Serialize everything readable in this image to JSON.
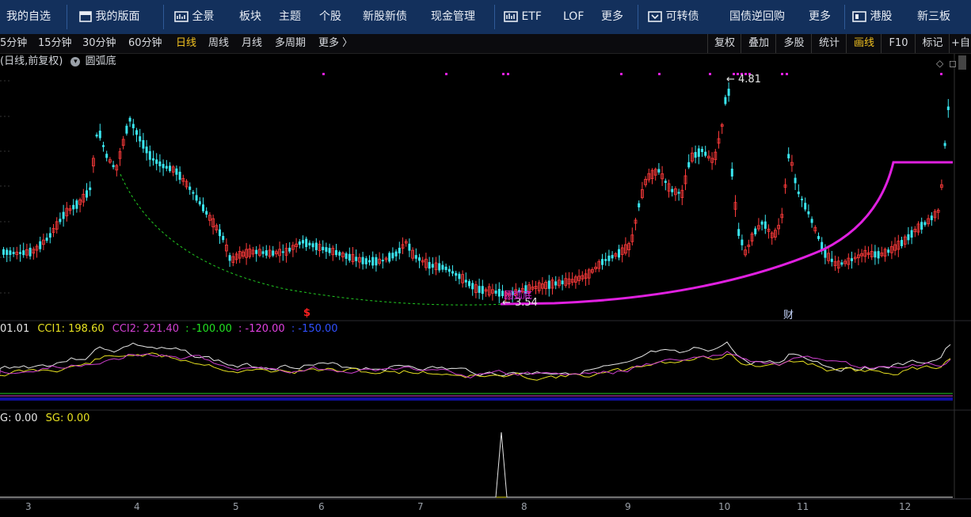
{
  "topbar": {
    "items": [
      {
        "label": "我的自选",
        "icon": ""
      },
      {
        "label": "我的版面",
        "icon": "layout-icon"
      },
      {
        "label": "全景",
        "icon": "panorama-icon"
      },
      {
        "label": "板块",
        "icon": ""
      },
      {
        "label": "主题",
        "icon": ""
      },
      {
        "label": "个股",
        "icon": ""
      },
      {
        "label": "新股新债",
        "icon": ""
      },
      {
        "label": "现金管理",
        "icon": ""
      },
      {
        "label": "ETF",
        "icon": "etf-chart-icon"
      },
      {
        "label": "LOF",
        "icon": ""
      },
      {
        "label": "更多",
        "icon": ""
      },
      {
        "label": "可转债",
        "icon": "bond-icon"
      },
      {
        "label": "国债逆回购",
        "icon": ""
      },
      {
        "label": "更多",
        "icon": ""
      },
      {
        "label": "港股",
        "icon": "hk-icon"
      },
      {
        "label": "新三板",
        "icon": ""
      }
    ]
  },
  "periods": {
    "items": [
      "5分钟",
      "15分钟",
      "30分钟",
      "60分钟",
      "日线",
      "周线",
      "月线",
      "多周期",
      "更多 〉"
    ],
    "active": "日线"
  },
  "toolbar_right": {
    "items": [
      "复权",
      "叠加",
      "多股",
      "统计",
      "画线",
      "F10",
      "标记",
      "+自"
    ],
    "active": "画线"
  },
  "info": {
    "mode": "(日线,前复权)",
    "indicator": "圆弧底"
  },
  "price_labels": {
    "high": "4.81",
    "low": "3.54",
    "high_arrow": "←",
    "low_arrow": "←"
  },
  "markers": {
    "dividend": "$",
    "finance": "财",
    "low_tag": "圆弧底"
  },
  "cci_panel": {
    "prefix": "01.01",
    "cci1_label": "CCI1: 198.60",
    "cci2_label": "CCI2: 221.40",
    "l1": ": -100.00",
    "l2": ": -120.00",
    "l3": ": -150.00"
  },
  "sg_panel": {
    "g_label": "G: 0.00",
    "sg_label": "SG: 0.00"
  },
  "x_axis": {
    "labels": [
      "3",
      "4",
      "5",
      "6",
      "7",
      "8",
      "9",
      "10",
      "11",
      "12"
    ]
  },
  "colors": {
    "up": "#ff3b3b",
    "down": "#3ae6f0",
    "arc": "#e020e0",
    "dashed_arc": "#22cc22",
    "cci1": "#e6e020",
    "cci2": "#d040d0",
    "topbar_bg": "#13305c",
    "active": "#f0c020"
  },
  "chart_data": {
    "type": "candlestick",
    "ylim": [
      3.54,
      4.81
    ],
    "annotations": [
      "4.81",
      "3.54"
    ],
    "x_ticks": [
      "3",
      "4",
      "5",
      "6",
      "7",
      "8",
      "9",
      "10",
      "11",
      "12"
    ],
    "note_values": {
      "high": 4.81,
      "low": 3.54
    }
  }
}
